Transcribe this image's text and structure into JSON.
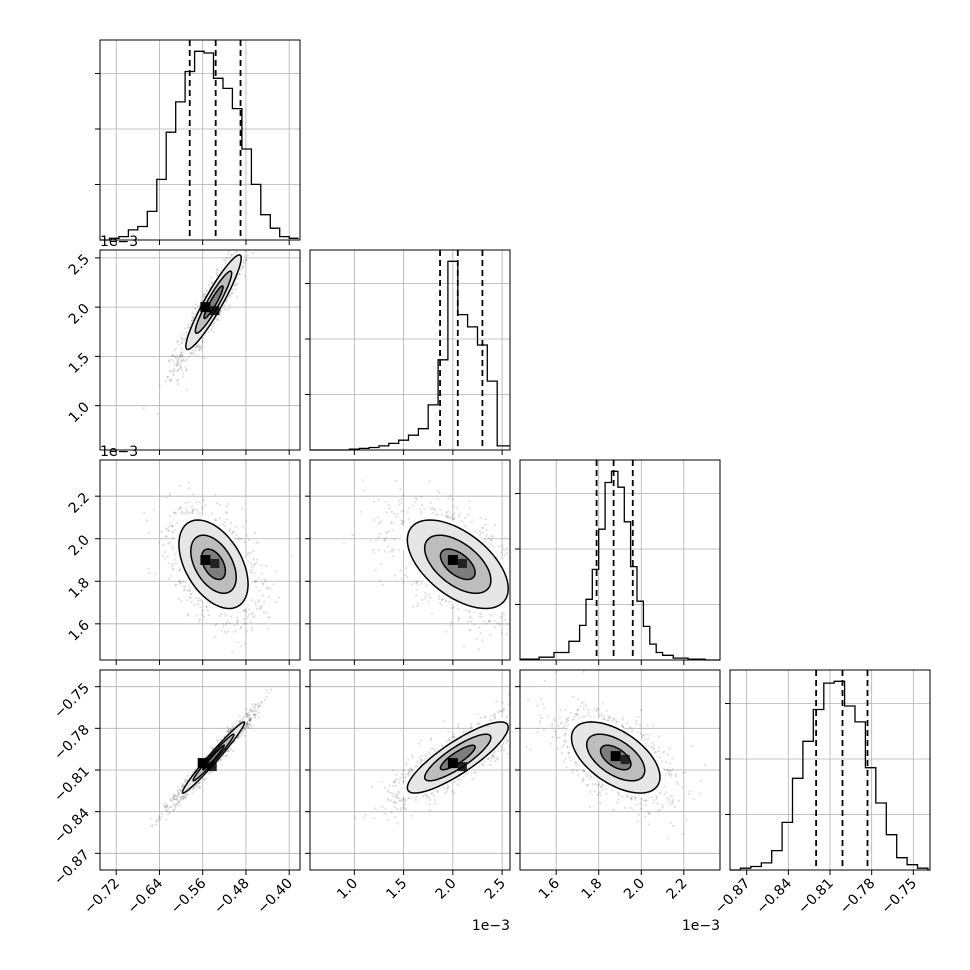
{
  "chart_data": {
    "type": "corner",
    "grid": true,
    "parameters": [
      {
        "xlim": [
          -0.75,
          -0.38
        ],
        "ticks": [
          -0.72,
          -0.64,
          -0.56,
          -0.48,
          -0.4
        ],
        "tick_labels": [
          "−0.72",
          "−0.64",
          "−0.56",
          "−0.48",
          "−0.40"
        ],
        "offset": "",
        "quantiles": [
          -0.584,
          -0.536,
          -0.49
        ],
        "hist": {
          "edges": [
            -0.75,
            -0.7325,
            -0.715,
            -0.6975,
            -0.68,
            -0.6625,
            -0.645,
            -0.6275,
            -0.61,
            -0.5925,
            -0.575,
            -0.5575,
            -0.54,
            -0.5225,
            -0.505,
            -0.4875,
            -0.47,
            -0.4525,
            -0.435,
            -0.4175,
            -0.4,
            -0.3825
          ],
          "counts": [
            0,
            1,
            2,
            6,
            8,
            17,
            36,
            64,
            82,
            100,
            112,
            111,
            96,
            90,
            78,
            54,
            33,
            15,
            7,
            2,
            1
          ]
        }
      },
      {
        "xlim": [
          0.00055,
          0.00258
        ],
        "ticks": [
          0.001,
          0.0015,
          0.002,
          0.0025
        ],
        "tick_labels": [
          "1.0",
          "1.5",
          "2.0",
          "2.5"
        ],
        "offset": "1e−3",
        "quantiles": [
          0.00187,
          0.00205,
          0.0023
        ],
        "hist": {
          "edges": [
            0.00055,
            0.00065,
            0.00075,
            0.00085,
            0.00095,
            0.00105,
            0.00115,
            0.00125,
            0.00135,
            0.00145,
            0.00155,
            0.00165,
            0.00175,
            0.00185,
            0.00195,
            0.00205,
            0.00215,
            0.00225,
            0.00235,
            0.00245,
            0.00258
          ],
          "counts": [
            0,
            0,
            0,
            0,
            1,
            2,
            3,
            5,
            8,
            12,
            18,
            26,
            55,
            110,
            230,
            165,
            150,
            128,
            84,
            5
          ]
        }
      },
      {
        "xlim": [
          0.00143,
          0.00237
        ],
        "ticks": [
          0.0016,
          0.0018,
          0.002,
          0.0022
        ],
        "tick_labels": [
          "1.6",
          "1.8",
          "2.0",
          "2.2"
        ],
        "offset": "1e−3",
        "quantiles": [
          0.00179,
          0.00187,
          0.00196
        ],
        "hist": {
          "edges": [
            0.00143,
            0.00152,
            0.00159,
            0.00166,
            0.00171,
            0.00174,
            0.00177,
            0.0018,
            0.00183,
            0.00186,
            0.00189,
            0.00192,
            0.00195,
            0.00198,
            0.00201,
            0.00204,
            0.00207,
            0.0021,
            0.00215,
            0.00222,
            0.0023,
            0.00237
          ],
          "counts": [
            1,
            3,
            8,
            20,
            37,
            65,
            97,
            140,
            190,
            202,
            185,
            148,
            100,
            63,
            36,
            17,
            8,
            5,
            2,
            1,
            0
          ]
        }
      },
      {
        "xlim": [
          -0.882,
          -0.738
        ],
        "ticks": [
          -0.87,
          -0.84,
          -0.81,
          -0.78,
          -0.75
        ],
        "tick_labels": [
          "−0.87",
          "−0.84",
          "−0.81",
          "−0.78",
          "−0.75"
        ],
        "offset": "",
        "quantiles": [
          -0.82,
          -0.801,
          -0.783
        ],
        "hist": {
          "edges": [
            -0.882,
            -0.8745,
            -0.867,
            -0.8595,
            -0.852,
            -0.8445,
            -0.837,
            -0.8295,
            -0.822,
            -0.8145,
            -0.807,
            -0.7995,
            -0.792,
            -0.7845,
            -0.777,
            -0.7695,
            -0.762,
            -0.7545,
            -0.747,
            -0.7395,
            -0.738
          ],
          "counts": [
            0,
            1,
            2,
            4,
            11,
            27,
            52,
            73,
            91,
            106,
            107,
            93,
            84,
            58,
            38,
            20,
            7,
            3,
            1,
            0
          ]
        }
      }
    ],
    "pairs": [
      {
        "row": 1,
        "col": 0,
        "x_mean": -0.54,
        "y_mean": 0.00205,
        "x_sd": 0.032,
        "y_sd": 0.0003,
        "rho": 0.93,
        "peak": [
          -0.555,
          0.002
        ]
      },
      {
        "row": 2,
        "col": 0,
        "x_mean": -0.54,
        "y_mean": 0.00188,
        "x_sd": 0.04,
        "y_sd": 0.00013,
        "rho": -0.45,
        "peak": [
          -0.555,
          0.0019
        ]
      },
      {
        "row": 2,
        "col": 1,
        "x_mean": 0.00205,
        "y_mean": 0.00188,
        "x_sd": 0.00032,
        "y_sd": 0.00013,
        "rho": -0.55,
        "peak": [
          0.002,
          0.0019
        ]
      },
      {
        "row": 3,
        "col": 0,
        "x_mean": -0.54,
        "y_mean": -0.801,
        "x_sd": 0.036,
        "y_sd": 0.016,
        "rho": 0.98,
        "peak": [
          -0.56,
          -0.805
        ]
      },
      {
        "row": 3,
        "col": 1,
        "x_mean": 0.00205,
        "y_mean": -0.801,
        "x_sd": 0.00032,
        "y_sd": 0.016,
        "rho": 0.85,
        "peak": [
          0.002,
          -0.805
        ]
      },
      {
        "row": 3,
        "col": 2,
        "x_mean": 0.00188,
        "y_mean": -0.801,
        "x_sd": 0.00013,
        "y_sd": 0.016,
        "rho": -0.55,
        "peak": [
          0.00188,
          -0.8
        ]
      }
    ]
  }
}
